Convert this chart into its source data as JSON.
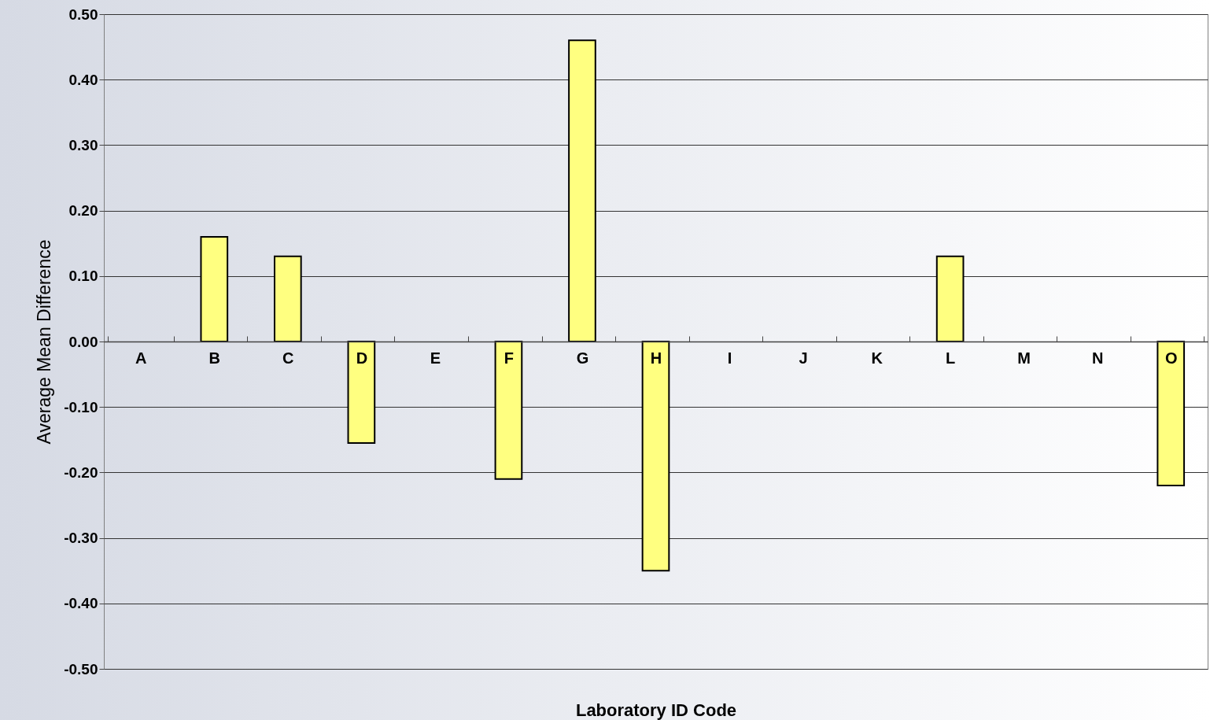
{
  "chart_data": {
    "type": "bar",
    "xlabel": "Laboratory ID Code",
    "ylabel": "Average Mean Difference",
    "categories": [
      "A",
      "B",
      "C",
      "D",
      "E",
      "F",
      "G",
      "H",
      "I",
      "J",
      "K",
      "L",
      "M",
      "N",
      "O"
    ],
    "values": [
      null,
      0.16,
      0.13,
      -0.155,
      null,
      -0.21,
      0.46,
      -0.35,
      null,
      null,
      null,
      0.13,
      null,
      null,
      -0.22
    ],
    "color": "#ffff80",
    "ylim": [
      -0.5,
      0.5
    ],
    "yticks": [
      {
        "value": -0.5,
        "label": "-0.50"
      },
      {
        "value": -0.4,
        "label": "-0.40"
      },
      {
        "value": -0.3,
        "label": "-0.30"
      },
      {
        "value": -0.2,
        "label": "-0.20"
      },
      {
        "value": -0.1,
        "label": "-0.10"
      },
      {
        "value": 0,
        "label": "0.00"
      },
      {
        "value": 0.1,
        "label": "0.10"
      },
      {
        "value": 0.2,
        "label": "0.20"
      },
      {
        "value": 0.3,
        "label": "0.30"
      },
      {
        "value": 0.4,
        "label": "0.40"
      },
      {
        "value": 0.5,
        "label": "0.50"
      }
    ],
    "grid": "y"
  }
}
